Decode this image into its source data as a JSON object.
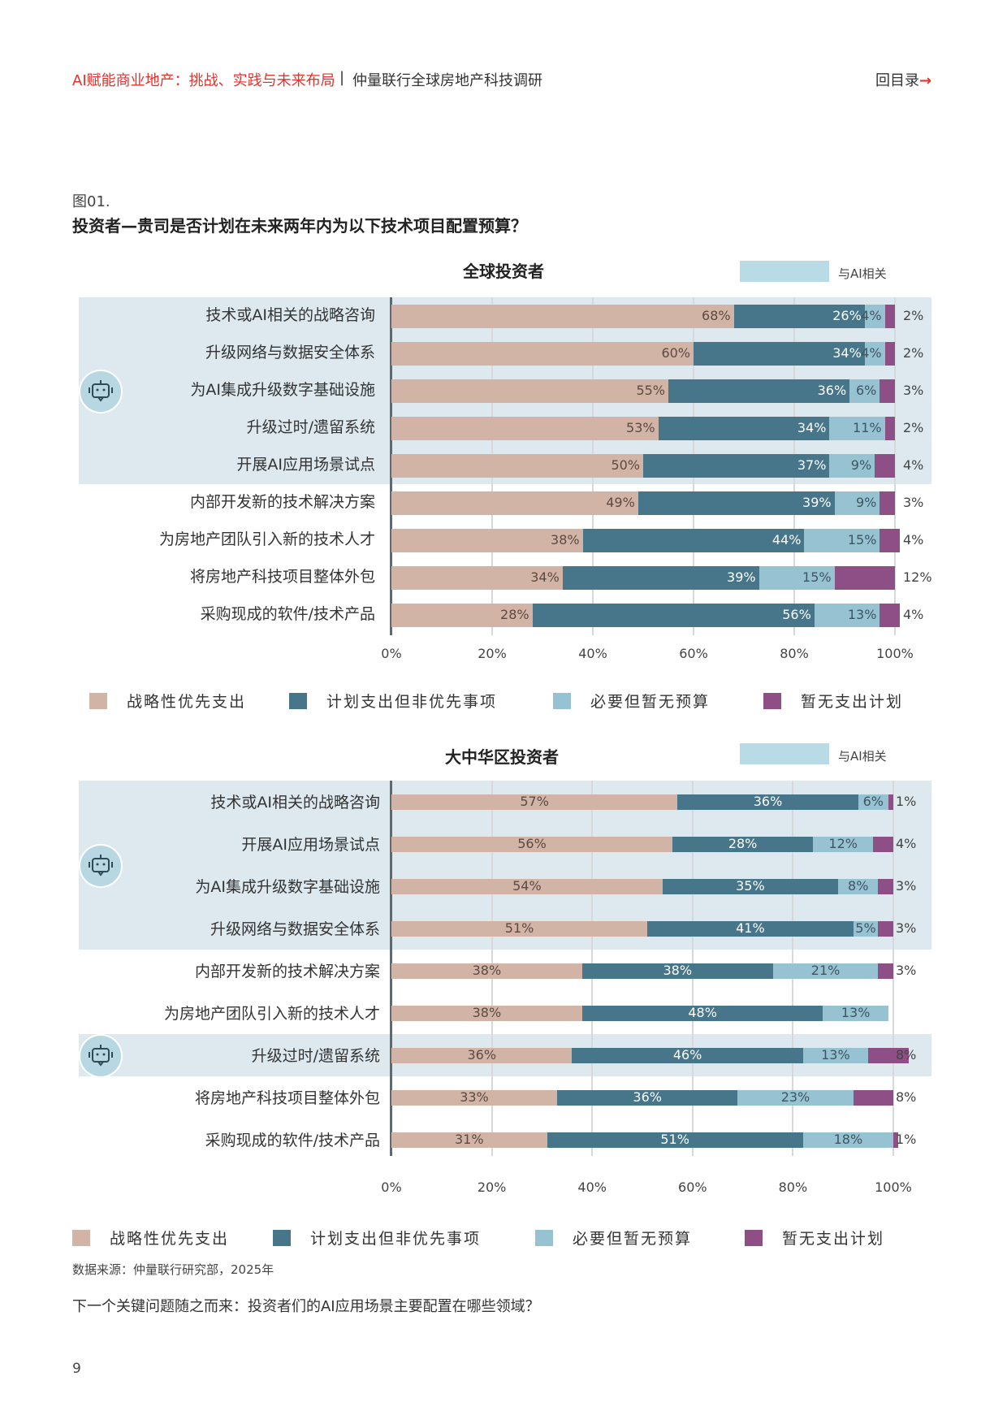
{
  "header": {
    "report_title": "AI赋能商业地产：挑战、实践与未来布局",
    "separator": "|",
    "series_title": "仲量联行全球房地产科技调研",
    "toc_link": "回目录",
    "toc_arrow": "→"
  },
  "figure": {
    "label": "图01.",
    "question": "投资者—贵司是否计划在未来两年内为以下技术项目配置预算？"
  },
  "colors": {
    "priority": "#d2b4a6",
    "planned": "#47758a",
    "needed": "#97c2d2",
    "none": "#8e4f86",
    "ai_band": "#dde9ef",
    "accent": "#e4312b"
  },
  "legend": [
    "战略性优先支出",
    "计划支出但非优先事项",
    "必要但暂无预算",
    "暂无支出计划"
  ],
  "ai_legend": "与AI相关",
  "chart_data": [
    {
      "type": "bar",
      "orientation": "horizontal",
      "stacked": true,
      "title": "全球投资者",
      "xlim": [
        0,
        100
      ],
      "ticks": [
        "0%",
        "20%",
        "40%",
        "60%",
        "80%",
        "100%"
      ],
      "categories": [
        "技术或AI相关的战略咨询",
        "升级网络与数据安全体系",
        "为AI集成升级数字基础设施",
        "升级过时/遗留系统",
        "开展AI应用场景试点",
        "内部开发新的技术解决方案",
        "为房地产团队引入新的技术人才",
        "将房地产科技项目整体外包",
        "采购现成的软件/技术产品"
      ],
      "ai_related": [
        true,
        true,
        true,
        true,
        true,
        false,
        false,
        false,
        false
      ],
      "series": [
        {
          "name": "战略性优先支出",
          "values": [
            68,
            60,
            55,
            53,
            50,
            49,
            38,
            34,
            28
          ]
        },
        {
          "name": "计划支出但非优先事项",
          "values": [
            26,
            34,
            36,
            34,
            37,
            39,
            44,
            39,
            56
          ]
        },
        {
          "name": "必要但暂无预算",
          "values": [
            4,
            4,
            6,
            11,
            9,
            9,
            15,
            15,
            13
          ]
        },
        {
          "name": "暂无支出计划",
          "values": [
            2,
            2,
            3,
            2,
            4,
            3,
            4,
            12,
            4
          ]
        }
      ]
    },
    {
      "type": "bar",
      "orientation": "horizontal",
      "stacked": true,
      "title": "大中华区投资者",
      "xlim": [
        0,
        100
      ],
      "ticks": [
        "0%",
        "20%",
        "40%",
        "60%",
        "80%",
        "100%"
      ],
      "categories": [
        "技术或AI相关的战略咨询",
        "开展AI应用场景试点",
        "为AI集成升级数字基础设施",
        "升级网络与数据安全体系",
        "内部开发新的技术解决方案",
        "为房地产团队引入新的技术人才",
        "升级过时/遗留系统",
        "将房地产科技项目整体外包",
        "采购现成的软件/技术产品"
      ],
      "ai_related": [
        true,
        true,
        true,
        true,
        false,
        false,
        true,
        false,
        false
      ],
      "series": [
        {
          "name": "战略性优先支出",
          "values": [
            57,
            56,
            54,
            51,
            38,
            38,
            36,
            33,
            31
          ]
        },
        {
          "name": "计划支出但非优先事项",
          "values": [
            36,
            28,
            35,
            41,
            38,
            48,
            46,
            36,
            51
          ]
        },
        {
          "name": "必要但暂无预算",
          "values": [
            6,
            12,
            8,
            5,
            21,
            13,
            13,
            23,
            18
          ]
        },
        {
          "name": "暂无支出计划",
          "values": [
            1,
            4,
            3,
            3,
            3,
            null,
            8,
            8,
            1
          ]
        }
      ]
    }
  ],
  "footer": {
    "source": "数据来源：仲量联行研究部，2025年",
    "next_question": "下一个关键问题随之而来：投资者们的AI应用场景主要配置在哪些领域？",
    "page_number": "9"
  }
}
